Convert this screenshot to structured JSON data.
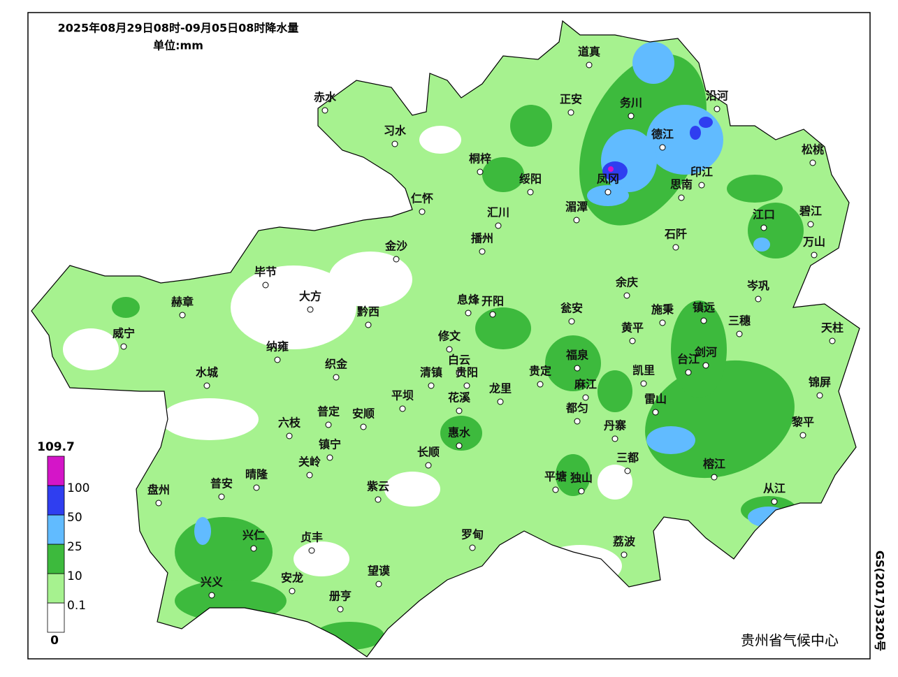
{
  "header": {
    "title": "2025年08月29日08时-09月05日08时降水量",
    "unit": "单位:mm"
  },
  "legend": {
    "top": 109.7,
    "ticks": [
      0,
      0.1,
      10,
      25,
      50,
      100
    ],
    "colors": [
      "#ffffff",
      "#a6f28f",
      "#3dba3d",
      "#61bbff",
      "#2f3ef0",
      "#d415c8"
    ]
  },
  "cities": [
    "道真",
    "赤水",
    "习水",
    "正安",
    "务川",
    "沿河",
    "德江",
    "松桃",
    "桐梓",
    "绥阳",
    "凤冈",
    "印江",
    "思南",
    "仁怀",
    "湄潭",
    "汇川",
    "江口",
    "碧江",
    "石阡",
    "万山",
    "播州",
    "金沙",
    "毕节",
    "大方",
    "赫章",
    "黔西",
    "息烽",
    "开阳",
    "瓮安",
    "余庆",
    "施秉",
    "镇远",
    "岑巩",
    "三穗",
    "天柱",
    "威宁",
    "黄平",
    "纳雍",
    "修文",
    "福泉",
    "剑河",
    "台江",
    "凯里",
    "织金",
    "水城",
    "白云",
    "清镇",
    "贵阳",
    "贵定",
    "龙里",
    "麻江",
    "锦屏",
    "平坝",
    "花溪",
    "都匀",
    "雷山",
    "普定",
    "安顺",
    "六枝",
    "丹寨",
    "惠水",
    "黎平",
    "镇宁",
    "长顺",
    "关岭",
    "三都",
    "榕江",
    "晴隆",
    "普安",
    "盘州",
    "平塘",
    "独山",
    "紫云",
    "从江",
    "兴仁",
    "贞丰",
    "罗甸",
    "荔波",
    "望谟",
    "安龙",
    "兴义",
    "册亨"
  ],
  "footer": {
    "agency": "贵州省气候中心",
    "approval": "GS(2017)3320号"
  }
}
